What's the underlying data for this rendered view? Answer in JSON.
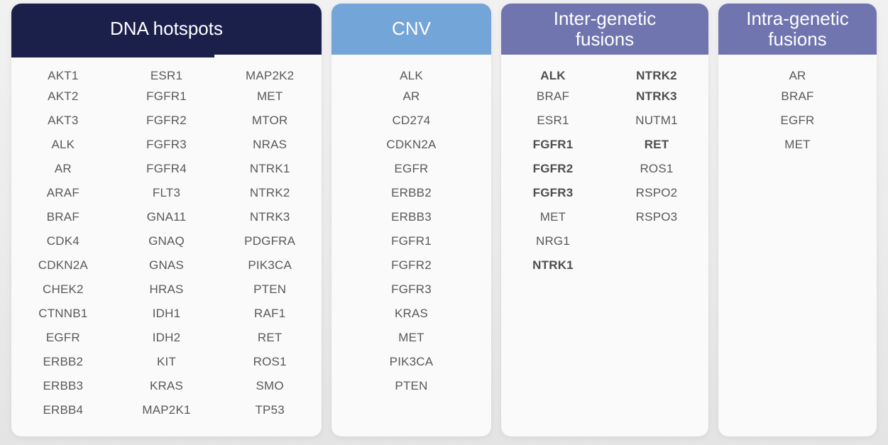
{
  "theme": {
    "card_bg": "#fafafa",
    "header_text": "#ffffff",
    "gene_text": "#58595b"
  },
  "panels": [
    {
      "title": "DNA hotspots",
      "header_color": "#1b204b",
      "bold_genes": [],
      "columns": [
        [
          "AKT1",
          "AKT2",
          "AKT3",
          "ALK",
          "AR",
          "ARAF",
          "BRAF",
          "CDK4",
          "CDKN2A",
          "CHEK2",
          "CTNNB1",
          "EGFR",
          "ERBB2",
          "ERBB3",
          "ERBB4"
        ],
        [
          "ESR1",
          "FGFR1",
          "FGFR2",
          "FGFR3",
          "FGFR4",
          "FLT3",
          "GNA11",
          "GNAQ",
          "GNAS",
          "HRAS",
          "IDH1",
          "IDH2",
          "KIT",
          "KRAS",
          "MAP2K1"
        ],
        [
          "MAP2K2",
          "MET",
          "MTOR",
          "NRAS",
          "NTRK1",
          "NTRK2",
          "NTRK3",
          "PDGFRA",
          "PIK3CA",
          "PTEN",
          "RAF1",
          "RET",
          "ROS1",
          "SMO",
          "TP53"
        ]
      ]
    },
    {
      "title": "CNV",
      "header_color": "#74a5d8",
      "bold_genes": [],
      "columns": [
        [
          "ALK",
          "AR",
          "CD274",
          "CDKN2A",
          "EGFR",
          "ERBB2",
          "ERBB3",
          "FGFR1",
          "FGFR2",
          "FGFR3",
          "KRAS",
          "MET",
          "PIK3CA",
          "PTEN"
        ]
      ]
    },
    {
      "title": "Inter-genetic fusions",
      "header_color": "#7175af",
      "bold_genes": [
        "ALK",
        "FGFR1",
        "FGFR2",
        "FGFR3",
        "NTRK1",
        "NTRK2",
        "NTRK3",
        "RET"
      ],
      "columns": [
        [
          "ALK",
          "BRAF",
          "ESR1",
          "FGFR1",
          "FGFR2",
          "FGFR3",
          "MET",
          "NRG1",
          "NTRK1"
        ],
        [
          "NTRK2",
          "NTRK3",
          "NUTM1",
          "RET",
          "ROS1",
          "RSPO2",
          "RSPO3"
        ]
      ]
    },
    {
      "title": "Intra-genetic fusions",
      "header_color": "#7175af",
      "bold_genes": [],
      "columns": [
        [
          "AR",
          "BRAF",
          "EGFR",
          "MET"
        ]
      ]
    }
  ]
}
